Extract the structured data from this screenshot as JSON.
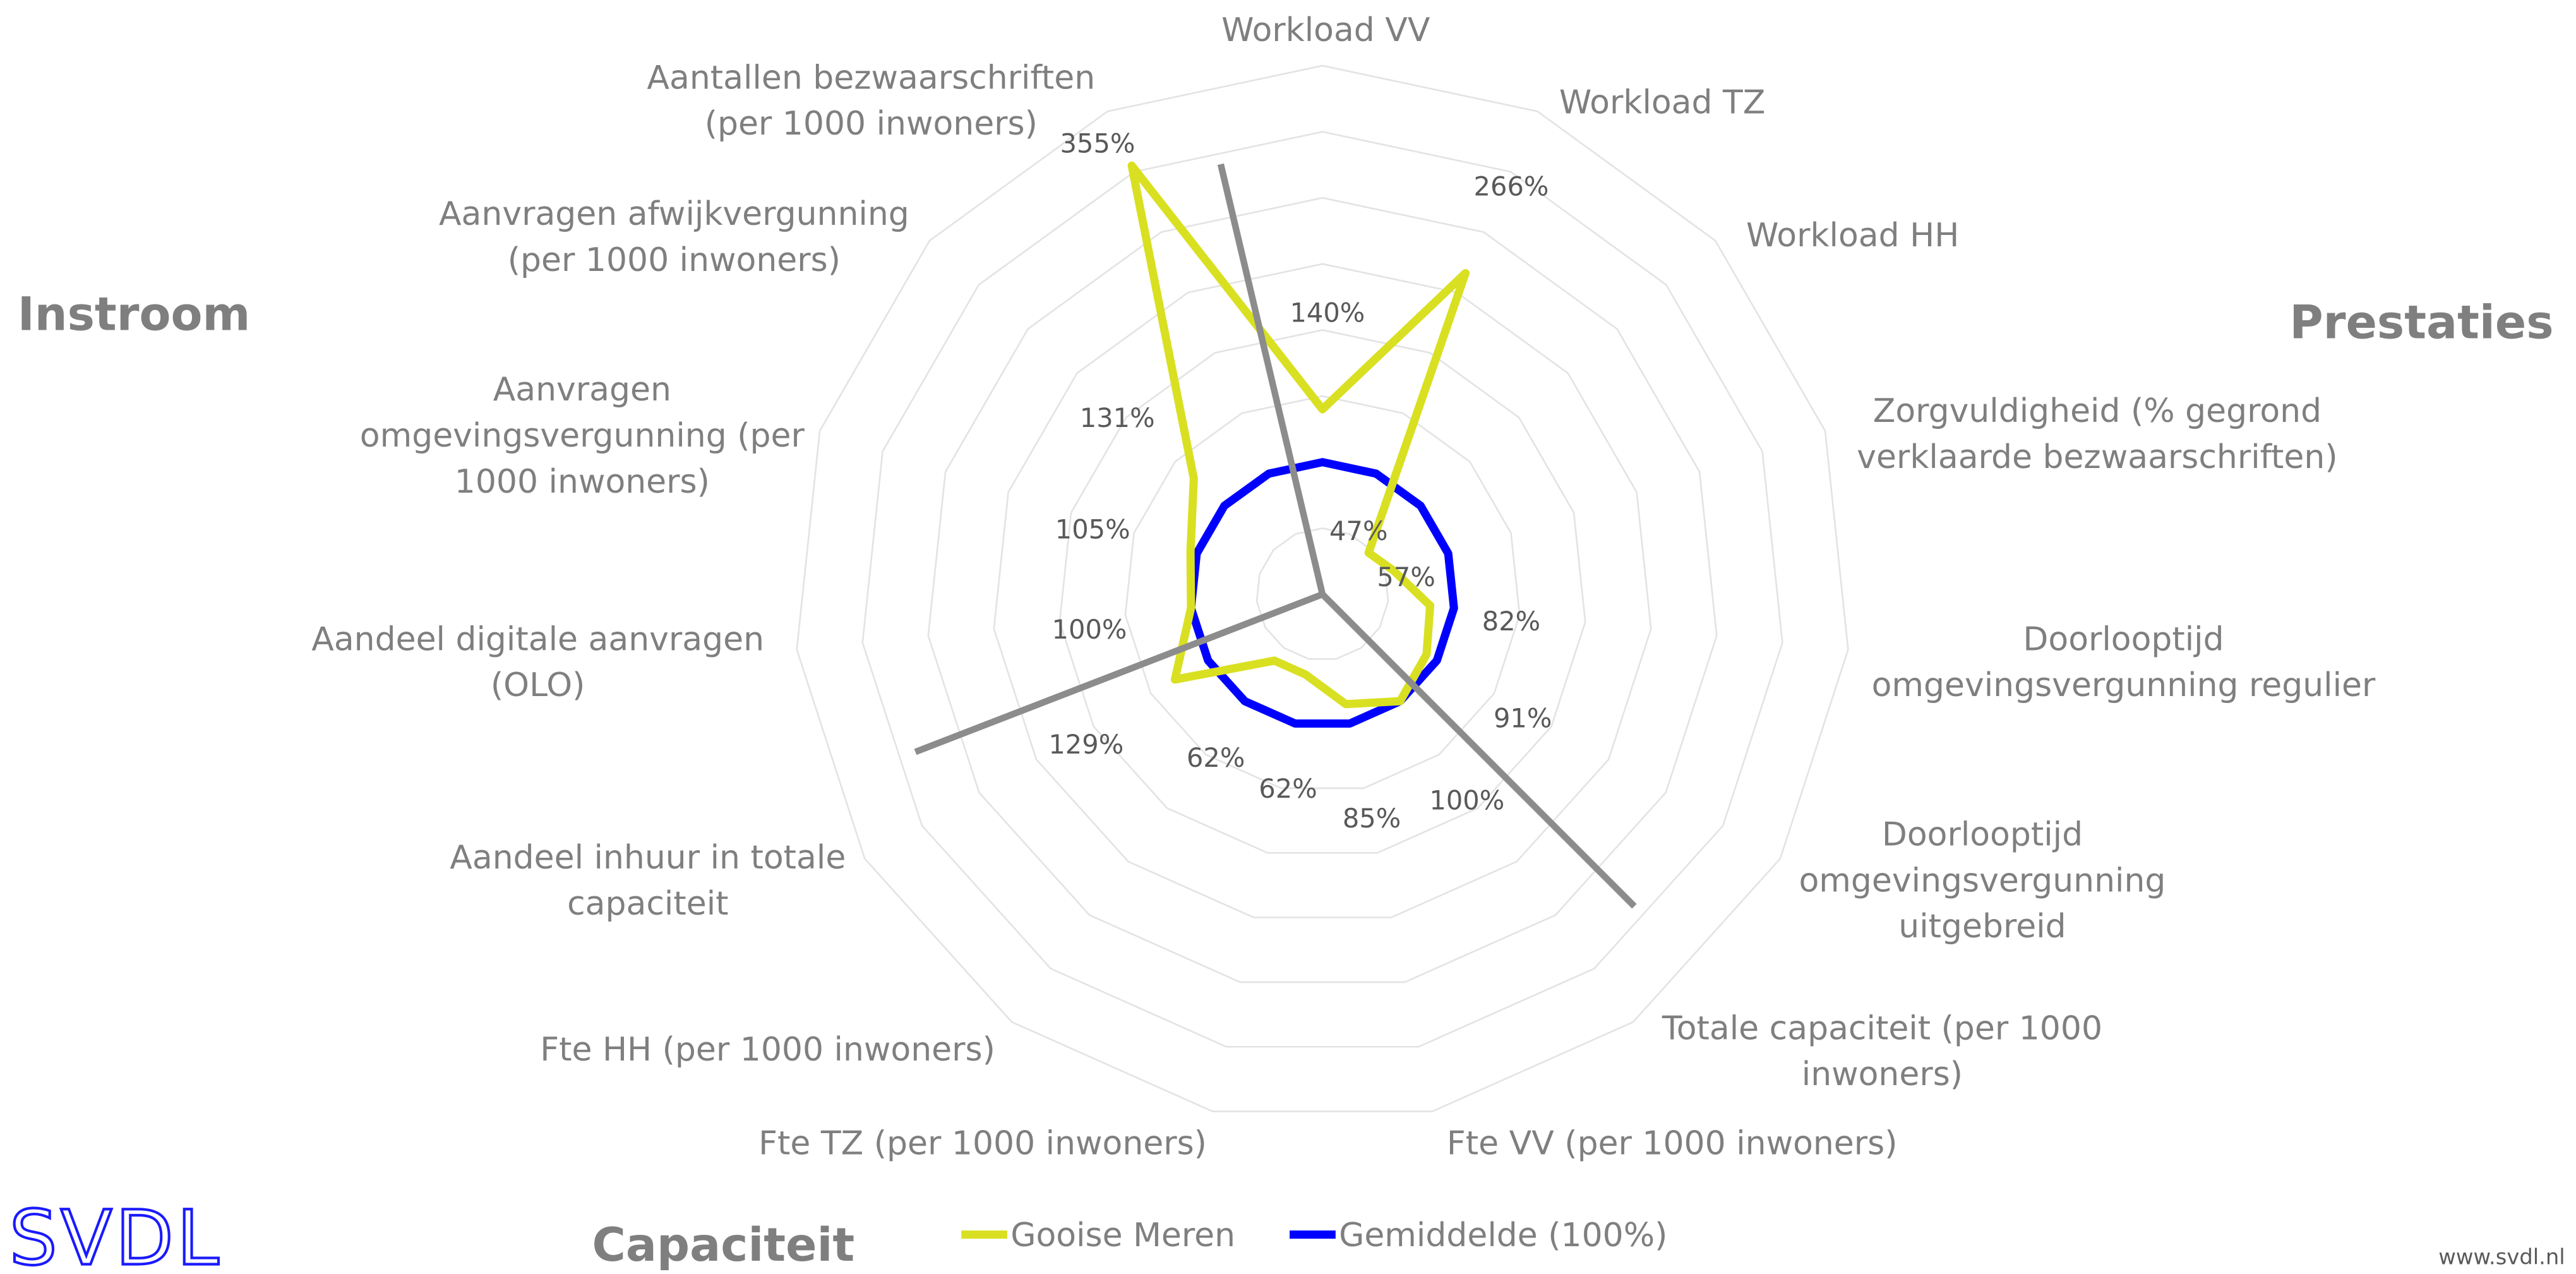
{
  "chart_data": {
    "type": "radar",
    "categories": [
      "Workload VV",
      "Workload TZ",
      "Workload HH",
      "Zorgvuldigheid (% gegrond\nverklaarde bezwaarschriften)",
      "Doorlooptijd\nomgevingsvergunning regulier",
      "Doorlooptijd\nomgevingsvergunning\nuitgebreid",
      "Totale capaciteit (per 1000\ninwoners)",
      "Fte VV (per 1000 inwoners)",
      "Fte TZ (per 1000 inwoners)",
      "Fte HH (per 1000 inwoners)",
      "Aandeel inhuur in totale\ncapaciteit",
      "Aandeel digitale aanvragen\n(OLO)",
      "Aanvragen\nomgevingsvergunning (per\n1000 inwoners)",
      "Aanvragen afwijkvergunning\n(per 1000 inwoners)",
      "Aantallen bezwaarschriften\n(per 1000 inwoners)"
    ],
    "series": [
      {
        "name": "Gooise Meren",
        "color": "#d9e021",
        "values": [
          140,
          266,
          47,
          57,
          82,
          91,
          100,
          85,
          62,
          62,
          129,
          100,
          105,
          131,
          355
        ],
        "value_labels": [
          "140%",
          "266%",
          "47%",
          "57%",
          "82%",
          "91%",
          "100%",
          "85%",
          "62%",
          "62%",
          "129%",
          "100%",
          "105%",
          "131%",
          "355%"
        ]
      },
      {
        "name": "Gemiddelde (100%)",
        "color": "#0000ff",
        "values": [
          100,
          100,
          100,
          100,
          100,
          100,
          100,
          100,
          100,
          100,
          100,
          100,
          100,
          100,
          100
        ]
      }
    ],
    "rlim": [
      0,
      400
    ],
    "rticks": [
      0,
      50,
      100,
      150,
      200,
      250,
      300,
      350,
      400
    ],
    "grid": true,
    "groups": [
      "Instroom",
      "Prestaties",
      "Capaciteit"
    ],
    "logo": "SVDL",
    "website": "www.svdl.nl"
  }
}
